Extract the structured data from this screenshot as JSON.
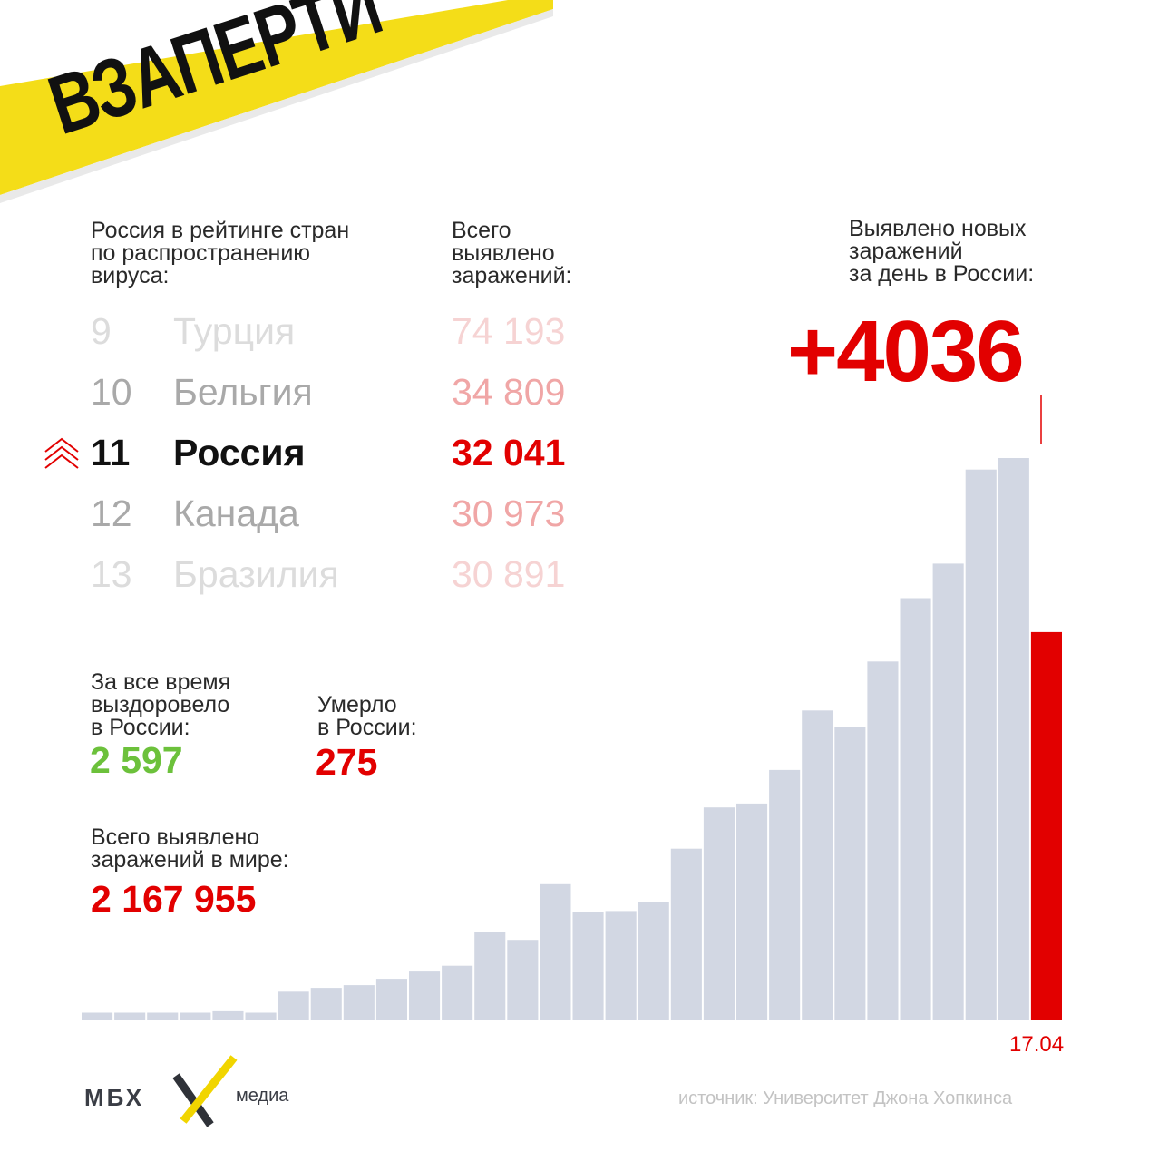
{
  "banner": {
    "title": "ВЗАПЕРТИ"
  },
  "ranking": {
    "heading": "Россия в рейтинге стран\nпо распространению\nвируса:",
    "total_heading": "Всего\nвыявлено\nзаражений:",
    "rows": [
      {
        "rank": "9",
        "country": "Турция",
        "total": "74 193"
      },
      {
        "rank": "10",
        "country": "Бельгия",
        "total": "34 809"
      },
      {
        "rank": "11",
        "country": "Россия",
        "total": "32 041"
      },
      {
        "rank": "12",
        "country": "Канада",
        "total": "30 973"
      },
      {
        "rank": "13",
        "country": "Бразилия",
        "total": "30 891"
      }
    ]
  },
  "daily": {
    "heading": "Выявлено новых\nзаражений\nза день в России:",
    "value": "+4036"
  },
  "recovered": {
    "label": "За все время\nвыздоровело\nв России:",
    "value": "2 597"
  },
  "deaths": {
    "label": "Умерло\nв России:",
    "value": "275"
  },
  "world": {
    "label": "Всего выявлено\nзаражений в мире:",
    "value": "2 167 955"
  },
  "chart_data": {
    "type": "bar",
    "values": [
      71,
      71,
      71,
      71,
      86,
      71,
      290,
      330,
      358,
      424,
      500,
      560,
      910,
      830,
      1410,
      1120,
      1130,
      1220,
      1780,
      2210,
      2250,
      2600,
      3220,
      3050,
      3730,
      4390,
      4750,
      5730,
      5850,
      4036
    ],
    "highlight_index": 29,
    "last_label": "17.04",
    "colors": {
      "bar": "#d2d7e3",
      "highlight": "#e20000"
    }
  },
  "footer": {
    "logo": "МБХ",
    "logo_media": "медиа",
    "source": "источник: Университет Джона Хопкинса"
  },
  "colors": {
    "accent": "#e20000",
    "banner": "#f4dd18",
    "green": "#6cc13b"
  }
}
